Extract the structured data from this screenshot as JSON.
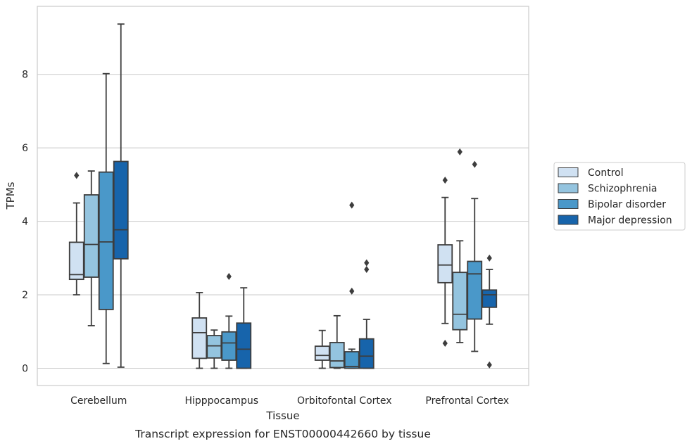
{
  "chart_data": {
    "type": "box",
    "caption": "Transcript expression for ENST00000442660 by tissue",
    "xlabel": "Tissue",
    "ylabel": "TPMs",
    "ylim": [
      -0.45,
      9.75
    ],
    "yticks": [
      0,
      2,
      4,
      6,
      8
    ],
    "grid": "horizontal",
    "legend_position": "right",
    "categories": [
      "Cerebellum",
      "Hipppocampus",
      "Orbitofontal Cortex",
      "Prefrontal Cortex"
    ],
    "series": [
      {
        "name": "Control",
        "color": "#d0e1f2",
        "boxes": [
          {
            "q1": 2.42,
            "median": 2.55,
            "q3": 3.43,
            "whisker_low": 2.0,
            "whisker_high": 4.5,
            "outliers": [
              5.25
            ]
          },
          {
            "q1": 0.27,
            "median": 0.97,
            "q3": 1.37,
            "whisker_low": 0.0,
            "whisker_high": 2.06,
            "outliers": []
          },
          {
            "q1": 0.22,
            "median": 0.35,
            "q3": 0.6,
            "whisker_low": 0.0,
            "whisker_high": 1.03,
            "outliers": []
          },
          {
            "q1": 2.33,
            "median": 2.81,
            "q3": 3.36,
            "whisker_low": 1.22,
            "whisker_high": 4.65,
            "outliers": [
              0.68,
              5.12
            ]
          }
        ]
      },
      {
        "name": "Schizophrenia",
        "color": "#94c4df",
        "boxes": [
          {
            "q1": 2.48,
            "median": 3.37,
            "q3": 4.72,
            "whisker_low": 1.16,
            "whisker_high": 5.37,
            "outliers": []
          },
          {
            "q1": 0.28,
            "median": 0.61,
            "q3": 0.89,
            "whisker_low": 0.0,
            "whisker_high": 1.04,
            "outliers": []
          },
          {
            "q1": 0.02,
            "median": 0.2,
            "q3": 0.7,
            "whisker_low": 0.0,
            "whisker_high": 1.43,
            "outliers": []
          },
          {
            "q1": 1.05,
            "median": 1.47,
            "q3": 2.61,
            "whisker_low": 0.7,
            "whisker_high": 3.47,
            "outliers": [
              5.89
            ]
          }
        ]
      },
      {
        "name": "Bipolar disorder",
        "color": "#4a98c9",
        "boxes": [
          {
            "q1": 1.6,
            "median": 3.44,
            "q3": 5.34,
            "whisker_low": 0.13,
            "whisker_high": 8.02,
            "outliers": []
          },
          {
            "q1": 0.22,
            "median": 0.69,
            "q3": 0.99,
            "whisker_low": 0.0,
            "whisker_high": 1.42,
            "outliers": [
              2.5
            ]
          },
          {
            "q1": 0.0,
            "median": 0.05,
            "q3": 0.45,
            "whisker_low": 0.0,
            "whisker_high": 0.52,
            "outliers": [
              2.1,
              4.44
            ]
          },
          {
            "q1": 1.34,
            "median": 2.57,
            "q3": 2.91,
            "whisker_low": 0.46,
            "whisker_high": 4.62,
            "outliers": [
              5.55
            ]
          }
        ]
      },
      {
        "name": "Major depression",
        "color": "#1764ab",
        "boxes": [
          {
            "q1": 2.98,
            "median": 3.77,
            "q3": 5.63,
            "whisker_low": 0.03,
            "whisker_high": 9.37,
            "outliers": []
          },
          {
            "q1": 0.0,
            "median": 0.52,
            "q3": 1.23,
            "whisker_low": 0.0,
            "whisker_high": 2.19,
            "outliers": []
          },
          {
            "q1": 0.0,
            "median": 0.33,
            "q3": 0.8,
            "whisker_low": 0.0,
            "whisker_high": 1.33,
            "outliers": [
              2.69,
              2.87
            ]
          },
          {
            "q1": 1.66,
            "median": 2.0,
            "q3": 2.13,
            "whisker_low": 1.2,
            "whisker_high": 2.69,
            "outliers": [
              0.09,
              3.0
            ]
          }
        ]
      }
    ]
  },
  "colors": {
    "grid": "#cccccc",
    "frame": "#cccccc",
    "stroke": "#3d3d3d",
    "text": "#262626",
    "background": "#ffffff"
  }
}
